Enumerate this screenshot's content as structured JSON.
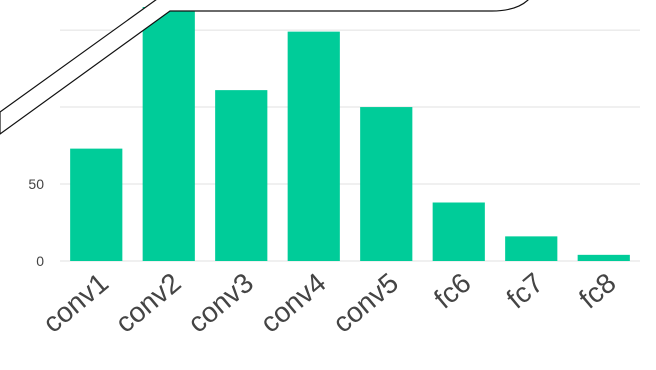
{
  "chart_data": {
    "type": "bar",
    "categories": [
      "conv1",
      "conv2",
      "conv3",
      "conv4",
      "conv5",
      "fc6",
      "fc7",
      "fc8"
    ],
    "values": [
      73,
      165,
      111,
      149,
      100,
      38,
      16,
      4
    ],
    "title": "",
    "xlabel": "",
    "ylabel": "",
    "ylim": [
      0,
      165
    ],
    "yticks": [
      0,
      50,
      100,
      150
    ],
    "ytick_labels": [
      "0",
      "50",
      "",
      ""
    ],
    "grid": true,
    "bar_color": "#00cc99"
  }
}
